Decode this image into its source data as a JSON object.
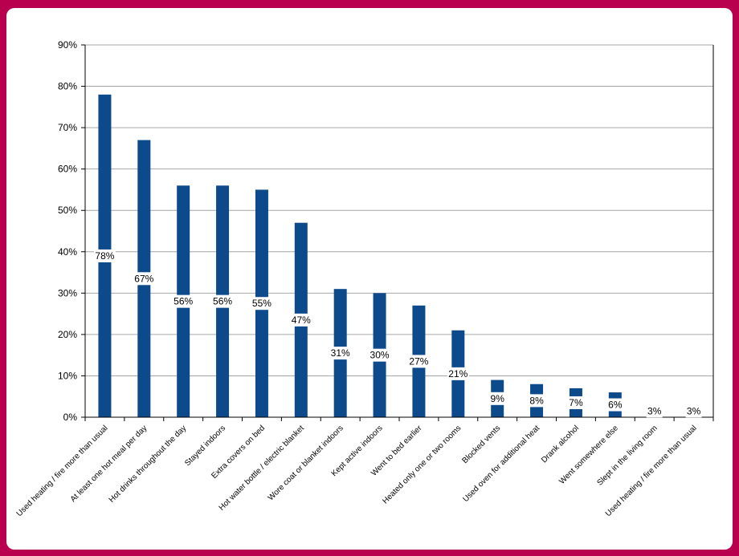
{
  "colors": {
    "border": "#b8004f",
    "bar": "#0c4a8c",
    "grid": "#a6a6a6",
    "axis": "#000000",
    "label_bg": "#ffffff"
  },
  "chart_data": {
    "type": "bar",
    "title": "",
    "xlabel": "",
    "ylabel": "",
    "ylim": [
      0,
      90
    ],
    "y_ticks": [
      "0%",
      "10%",
      "20%",
      "30%",
      "40%",
      "50%",
      "60%",
      "70%",
      "80%",
      "90%"
    ],
    "grid": true,
    "legend": "none",
    "categories": [
      "Used heating / fire more than usual",
      "At least one hot meal per day",
      "Hot drinks throughout the day",
      "Stayed indoors",
      "Extra covers on bed",
      "Hot water bottle / electric blanket",
      "Wore coat or blanket indoors",
      "Kept active indoors",
      "Went to bed earlier",
      "Heated only one or two rooms",
      "Blocked vents",
      "Used oven for additional heat",
      "Drank alcohol",
      "Went somewhere else",
      "Slept in the living room",
      "Used heating / fire more than usual"
    ],
    "values": [
      78,
      67,
      56,
      56,
      55,
      47,
      31,
      30,
      27,
      21,
      9,
      8,
      7,
      6,
      3,
      3
    ],
    "data_labels": [
      "78%",
      "67%",
      "56%",
      "56%",
      "55%",
      "47%",
      "31%",
      "30%",
      "27%",
      "21%",
      "9%",
      "8%",
      "7%",
      "6%",
      "3%",
      "3%"
    ]
  }
}
